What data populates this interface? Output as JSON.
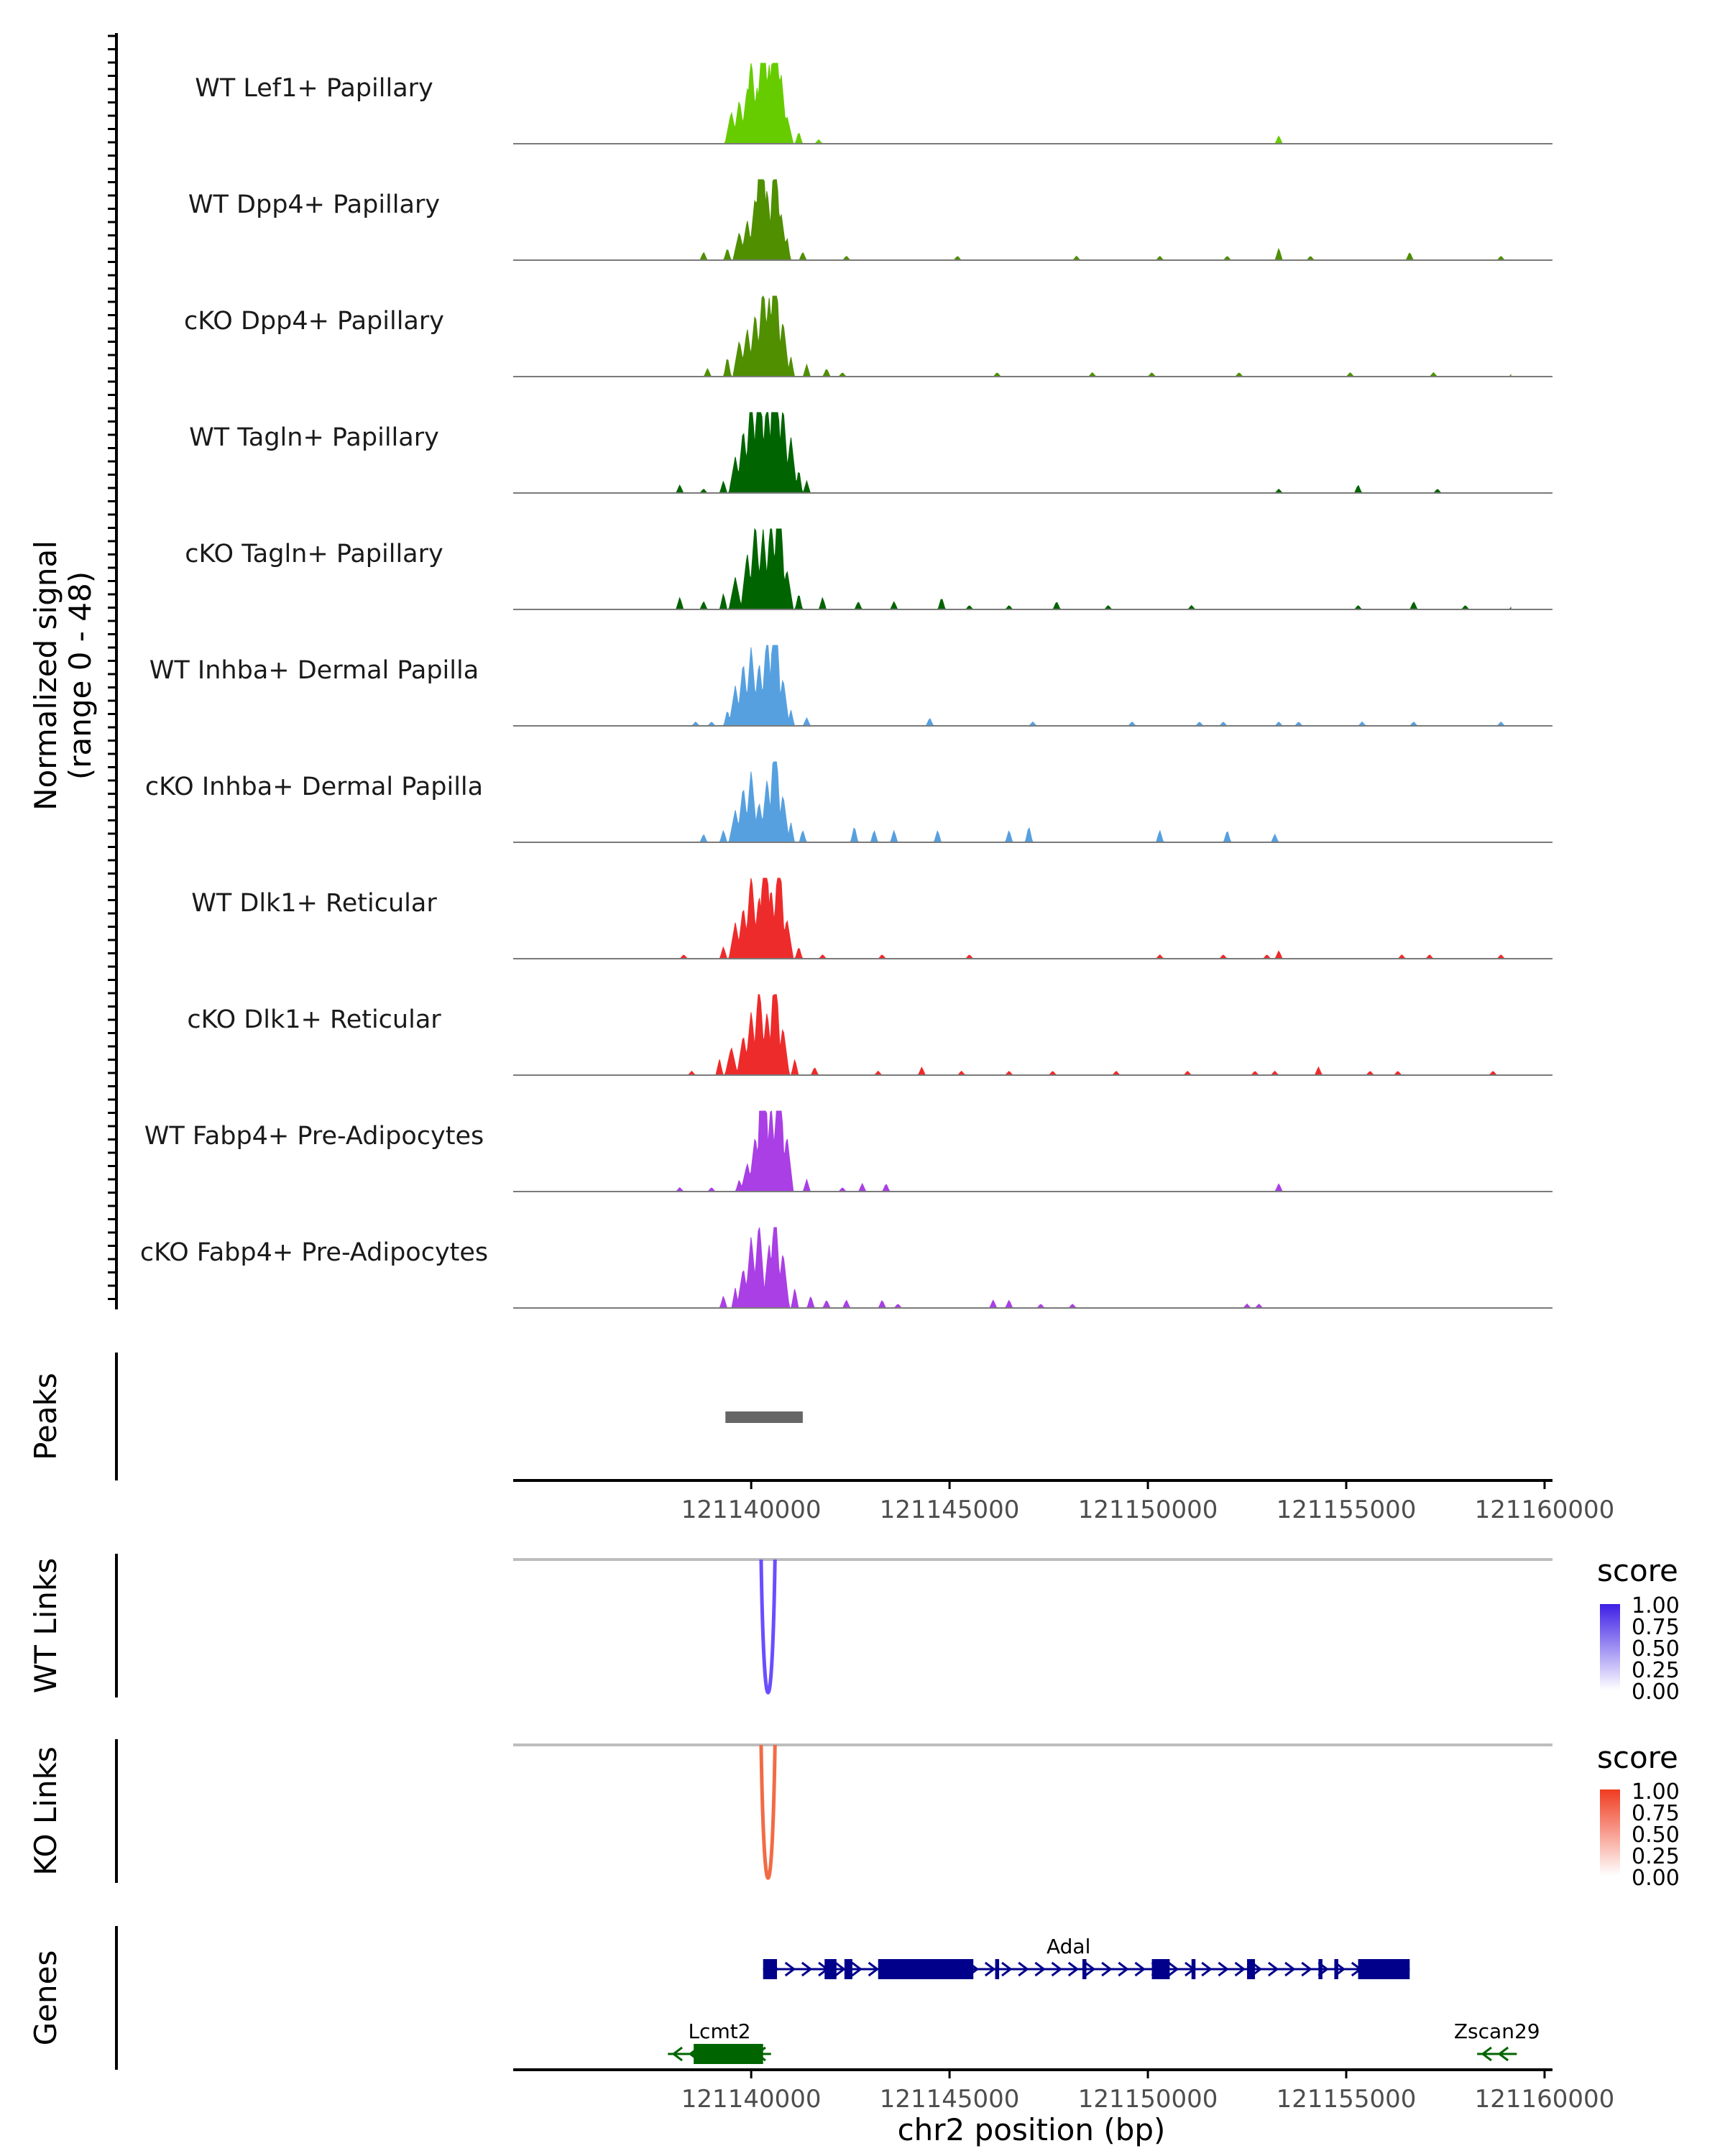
{
  "chart_data": {
    "type": "area",
    "title": "",
    "ylabel_line1": "Normalized signal",
    "ylabel_line2": "(range 0 - 48)",
    "xlabel": "chr2 position (bp)",
    "xlim": [
      121134000,
      121160200
    ],
    "x_ticks": [
      121140000,
      121145000,
      121150000,
      121155000,
      121160000
    ],
    "x_tick_labels": [
      "121140000",
      "121145000",
      "121150000",
      "121155000",
      "121160000"
    ],
    "y_range": [
      0,
      48
    ],
    "coverage_tracks": [
      {
        "name": "WT Lef1+ Papillary",
        "color": "#66CC00",
        "peaks": [
          [
            121139500,
            8
          ],
          [
            121139700,
            11
          ],
          [
            121139900,
            14
          ],
          [
            121140000,
            22
          ],
          [
            121140150,
            14
          ],
          [
            121140300,
            36
          ],
          [
            121140450,
            20
          ],
          [
            121140600,
            42
          ],
          [
            121140750,
            18
          ],
          [
            121140900,
            7
          ],
          [
            121141200,
            3
          ],
          [
            121141700,
            1
          ],
          [
            121153300,
            2
          ]
        ]
      },
      {
        "name": "WT Dpp4+ Papillary",
        "color": "#4F8F00",
        "peaks": [
          [
            121138800,
            2
          ],
          [
            121139400,
            3
          ],
          [
            121139700,
            7
          ],
          [
            121139900,
            10
          ],
          [
            121140100,
            16
          ],
          [
            121140250,
            40
          ],
          [
            121140400,
            18
          ],
          [
            121140600,
            30
          ],
          [
            121140750,
            12
          ],
          [
            121140900,
            6
          ],
          [
            121141300,
            2
          ],
          [
            121142400,
            1
          ],
          [
            121145200,
            1
          ],
          [
            121148200,
            1
          ],
          [
            121150300,
            1
          ],
          [
            121152000,
            1
          ],
          [
            121153300,
            3
          ],
          [
            121154100,
            1
          ],
          [
            121156600,
            2
          ],
          [
            121158900,
            1
          ]
        ]
      },
      {
        "name": "cKO Dpp4+ Papillary",
        "color": "#4F8F00",
        "peaks": [
          [
            121138900,
            2
          ],
          [
            121139400,
            5
          ],
          [
            121139700,
            9
          ],
          [
            121139900,
            12
          ],
          [
            121140100,
            16
          ],
          [
            121140300,
            24
          ],
          [
            121140450,
            20
          ],
          [
            121140600,
            32
          ],
          [
            121140800,
            14
          ],
          [
            121141000,
            5
          ],
          [
            121141400,
            3
          ],
          [
            121141900,
            2
          ],
          [
            121142300,
            1
          ],
          [
            121146200,
            1
          ],
          [
            121148600,
            1
          ],
          [
            121150100,
            1
          ],
          [
            121152300,
            1
          ],
          [
            121155100,
            1
          ],
          [
            121157200,
            1
          ],
          [
            121159200,
            1
          ]
        ]
      },
      {
        "name": "WT Tagln+ Papillary",
        "color": "#006400",
        "peaks": [
          [
            121138200,
            2
          ],
          [
            121138800,
            1
          ],
          [
            121139300,
            3
          ],
          [
            121139600,
            9
          ],
          [
            121139800,
            16
          ],
          [
            121140000,
            26
          ],
          [
            121140200,
            34
          ],
          [
            121140400,
            25
          ],
          [
            121140600,
            46
          ],
          [
            121140800,
            22
          ],
          [
            121141000,
            14
          ],
          [
            121141200,
            6
          ],
          [
            121141400,
            3
          ],
          [
            121153300,
            1
          ],
          [
            121155300,
            2
          ],
          [
            121157300,
            1
          ]
        ]
      },
      {
        "name": "cKO Tagln+ Papillary",
        "color": "#006400",
        "peaks": [
          [
            121138200,
            3
          ],
          [
            121138800,
            2
          ],
          [
            121139300,
            4
          ],
          [
            121139600,
            8
          ],
          [
            121139900,
            14
          ],
          [
            121140100,
            22
          ],
          [
            121140300,
            20
          ],
          [
            121140500,
            24
          ],
          [
            121140700,
            34
          ],
          [
            121140900,
            10
          ],
          [
            121141200,
            4
          ],
          [
            121141800,
            3
          ],
          [
            121142700,
            2
          ],
          [
            121143600,
            2
          ],
          [
            121144800,
            3
          ],
          [
            121145500,
            1
          ],
          [
            121146500,
            1
          ],
          [
            121147700,
            2
          ],
          [
            121149000,
            1
          ],
          [
            121151100,
            1
          ],
          [
            121155300,
            1
          ],
          [
            121156700,
            2
          ],
          [
            121158000,
            1
          ],
          [
            121159200,
            1
          ]
        ]
      },
      {
        "name": "WT Inhba+ Dermal Papilla",
        "color": "#56A0E0",
        "peaks": [
          [
            121138600,
            1
          ],
          [
            121139000,
            1
          ],
          [
            121139400,
            4
          ],
          [
            121139600,
            10
          ],
          [
            121139800,
            16
          ],
          [
            121140000,
            20
          ],
          [
            121140200,
            16
          ],
          [
            121140400,
            24
          ],
          [
            121140600,
            38
          ],
          [
            121140800,
            12
          ],
          [
            121141000,
            4
          ],
          [
            121141400,
            2
          ],
          [
            121144500,
            2
          ],
          [
            121147100,
            1
          ],
          [
            121149600,
            1
          ],
          [
            121151300,
            1
          ],
          [
            121151900,
            1
          ],
          [
            121153300,
            1
          ],
          [
            121153800,
            1
          ],
          [
            121155400,
            1
          ],
          [
            121156700,
            1
          ],
          [
            121158900,
            1
          ]
        ]
      },
      {
        "name": "cKO Inhba+ Dermal Papilla",
        "color": "#56A0E0",
        "peaks": [
          [
            121138800,
            2
          ],
          [
            121139300,
            3
          ],
          [
            121139600,
            8
          ],
          [
            121139800,
            14
          ],
          [
            121140000,
            18
          ],
          [
            121140200,
            10
          ],
          [
            121140400,
            16
          ],
          [
            121140600,
            30
          ],
          [
            121140800,
            12
          ],
          [
            121141000,
            5
          ],
          [
            121141300,
            3
          ],
          [
            121142600,
            4
          ],
          [
            121143100,
            3
          ],
          [
            121143600,
            3
          ],
          [
            121144700,
            3
          ],
          [
            121146500,
            3
          ],
          [
            121147000,
            4
          ],
          [
            121150300,
            3
          ],
          [
            121152000,
            3
          ],
          [
            121153200,
            2
          ]
        ]
      },
      {
        "name": "WT Dlk1+ Reticular",
        "color": "#EE2B2B",
        "peaks": [
          [
            121138300,
            1
          ],
          [
            121139300,
            3
          ],
          [
            121139600,
            9
          ],
          [
            121139800,
            13
          ],
          [
            121140000,
            22
          ],
          [
            121140200,
            16
          ],
          [
            121140350,
            34
          ],
          [
            121140500,
            18
          ],
          [
            121140700,
            30
          ],
          [
            121140900,
            10
          ],
          [
            121141200,
            3
          ],
          [
            121141800,
            1
          ],
          [
            121143300,
            1
          ],
          [
            121145500,
            1
          ],
          [
            121150300,
            1
          ],
          [
            121151900,
            1
          ],
          [
            121153000,
            1
          ],
          [
            121153300,
            2
          ],
          [
            121156400,
            1
          ],
          [
            121157100,
            1
          ],
          [
            121158900,
            1
          ]
        ]
      },
      {
        "name": "cKO Dlk1+ Reticular",
        "color": "#EE2B2B",
        "peaks": [
          [
            121138500,
            1
          ],
          [
            121139200,
            4
          ],
          [
            121139500,
            7
          ],
          [
            121139800,
            10
          ],
          [
            121140000,
            16
          ],
          [
            121140200,
            24
          ],
          [
            121140400,
            16
          ],
          [
            121140600,
            30
          ],
          [
            121140800,
            12
          ],
          [
            121141100,
            4
          ],
          [
            121141600,
            2
          ],
          [
            121143200,
            1
          ],
          [
            121144300,
            2
          ],
          [
            121145300,
            1
          ],
          [
            121146500,
            1
          ],
          [
            121147600,
            1
          ],
          [
            121149200,
            1
          ],
          [
            121151000,
            1
          ],
          [
            121152700,
            1
          ],
          [
            121153200,
            1
          ],
          [
            121154300,
            2
          ],
          [
            121155600,
            1
          ],
          [
            121156300,
            1
          ],
          [
            121158700,
            1
          ]
        ]
      },
      {
        "name": "WT Fabp4+ Pre-Adipocytes",
        "color": "#A93FE5",
        "peaks": [
          [
            121138200,
            1
          ],
          [
            121139000,
            1
          ],
          [
            121139700,
            3
          ],
          [
            121139900,
            7
          ],
          [
            121140100,
            14
          ],
          [
            121140300,
            46
          ],
          [
            121140500,
            22
          ],
          [
            121140700,
            38
          ],
          [
            121140900,
            14
          ],
          [
            121141400,
            3
          ],
          [
            121142300,
            1
          ],
          [
            121142800,
            2
          ],
          [
            121143400,
            2
          ],
          [
            121153300,
            2
          ]
        ]
      },
      {
        "name": "cKO Fabp4+ Pre-Adipocytes",
        "color": "#A93FE5",
        "peaks": [
          [
            121139300,
            3
          ],
          [
            121139600,
            5
          ],
          [
            121139800,
            10
          ],
          [
            121140000,
            18
          ],
          [
            121140200,
            22
          ],
          [
            121140450,
            16
          ],
          [
            121140600,
            26
          ],
          [
            121140800,
            14
          ],
          [
            121141100,
            5
          ],
          [
            121141500,
            3
          ],
          [
            121141900,
            2
          ],
          [
            121142400,
            2
          ],
          [
            121143300,
            2
          ],
          [
            121143700,
            1
          ],
          [
            121146100,
            2
          ],
          [
            121146500,
            2
          ],
          [
            121147300,
            1
          ],
          [
            121148100,
            1
          ],
          [
            121152500,
            1
          ],
          [
            121152800,
            1
          ]
        ]
      }
    ],
    "peaks_track": {
      "label": "Peaks",
      "regions": [
        [
          121139350,
          121141300
        ]
      ],
      "color": "#666666"
    },
    "link_tracks": [
      {
        "label": "WT Links",
        "legend_title": "score",
        "legend_ticks": [
          "1.00",
          "0.75",
          "0.50",
          "0.25",
          "0.00"
        ],
        "color_high": "#3D1FE6",
        "color_low": "#FFFFFF",
        "link_color": "#6B4DFF",
        "links": [
          {
            "start": 121140250,
            "end": 121140600,
            "score": 0.85
          }
        ]
      },
      {
        "label": "KO Links",
        "legend_title": "score",
        "legend_ticks": [
          "1.00",
          "0.75",
          "0.50",
          "0.25",
          "0.00"
        ],
        "color_high": "#F03B20",
        "color_low": "#FFFFFF",
        "link_color": "#F26B45",
        "links": [
          {
            "start": 121140250,
            "end": 121140600,
            "score": 0.85
          }
        ]
      }
    ],
    "genes_track": {
      "label": "Genes",
      "genes": [
        {
          "name": "Adal",
          "strand": "+",
          "color": "#00008B",
          "row": 0,
          "start": 121140300,
          "end": 121156600,
          "exons": [
            [
              121140300,
              121140650
            ],
            [
              121141850,
              121142150
            ],
            [
              121142350,
              121142550
            ],
            [
              121143200,
              121145600
            ],
            [
              121146150,
              121146250
            ],
            [
              121148350,
              121148450
            ],
            [
              121150100,
              121150550
            ],
            [
              121151100,
              121151200
            ],
            [
              121152500,
              121152700
            ],
            [
              121154300,
              121154400
            ],
            [
              121154700,
              121154800
            ],
            [
              121155300,
              121156600
            ]
          ]
        },
        {
          "name": "Lcmt2",
          "strand": "-",
          "color": "#006400",
          "row": 1,
          "start": 121137900,
          "end": 121140500,
          "exons": [
            [
              121138550,
              121140300
            ]
          ]
        },
        {
          "name": "Zscan29",
          "strand": "-",
          "color": "#006400",
          "row": 1,
          "start": 121158300,
          "end": 121159300,
          "exons": []
        }
      ]
    }
  }
}
